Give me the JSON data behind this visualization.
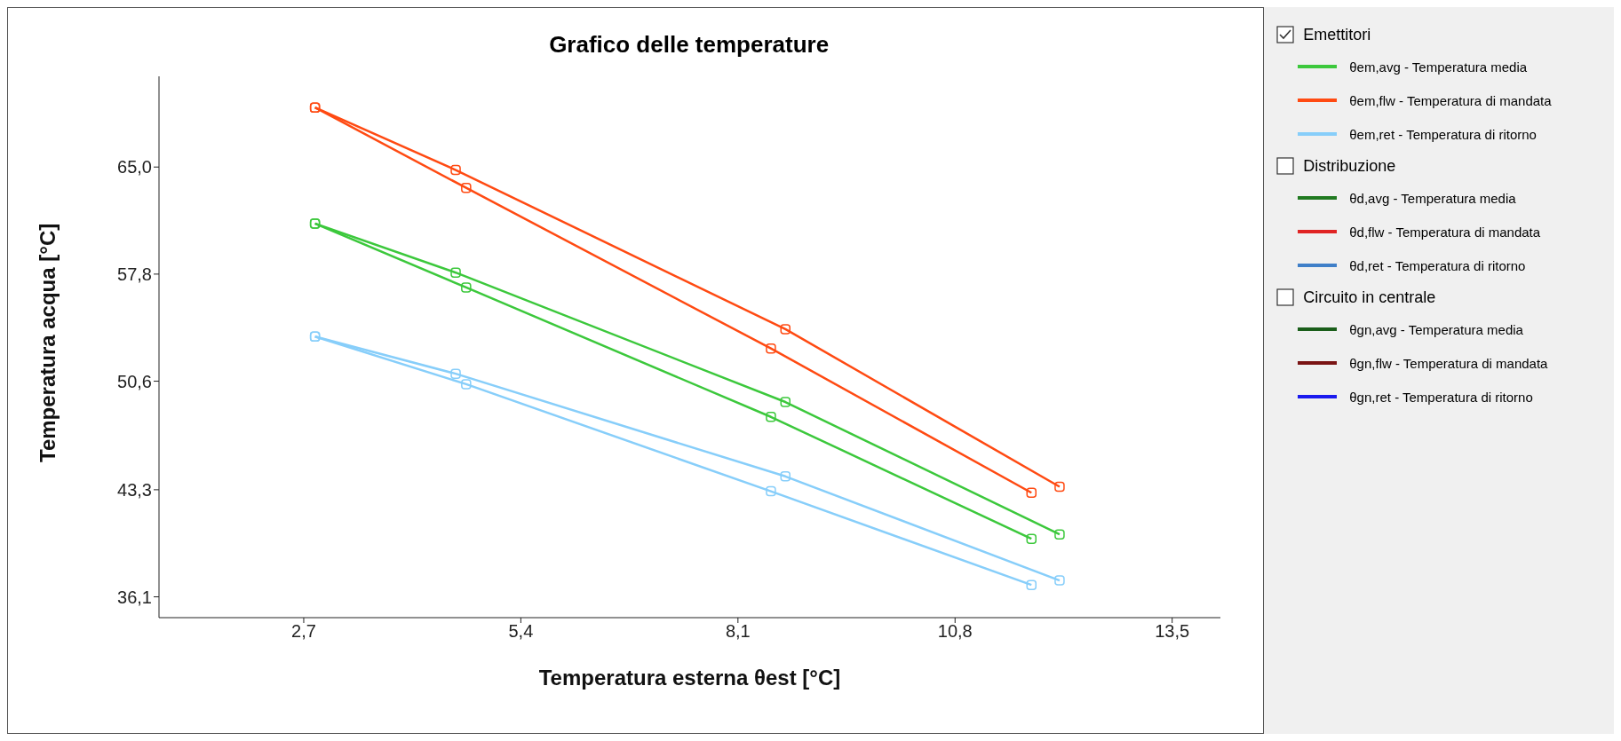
{
  "chart_data": {
    "type": "line",
    "title": "Grafico delle temperature",
    "xlabel": "Temperatura esterna θest [°C]",
    "ylabel": "Temperatura acqua [°C]",
    "xlim": [
      0.9,
      14.1
    ],
    "xticks": [
      {
        "value": 2.7,
        "label": "2,7"
      },
      {
        "value": 5.4,
        "label": "5,4"
      },
      {
        "value": 8.1,
        "label": "8,1"
      },
      {
        "value": 10.8,
        "label": "10,8"
      },
      {
        "value": 13.5,
        "label": "13,5"
      }
    ],
    "ylim": [
      34.7,
      71.1
    ],
    "yticks": [
      {
        "value": 36.1,
        "label": "36,1"
      },
      {
        "value": 43.3,
        "label": "43,3"
      },
      {
        "value": 50.6,
        "label": "50,6"
      },
      {
        "value": 57.8,
        "label": "57,8"
      },
      {
        "value": 65,
        "label": "65,0"
      }
    ],
    "grid": false,
    "marker": "square",
    "line_style": "solid",
    "legend": "right",
    "annotations": [
      "Emettitori",
      "Distribuzione",
      "Circuito in centrale"
    ],
    "series": [
      {
        "name": "θem,avg - Temperatura media",
        "color": "#3cc83c",
        "x": [
          2.84,
          4.59,
          8.69,
          12.1
        ],
        "values": [
          61.2,
          57.9,
          49.2,
          40.3
        ]
      },
      {
        "name": "θem,flw - Temperatura di mandata",
        "color": "#ff4a12",
        "x": [
          2.84,
          4.59,
          8.69,
          12.1
        ],
        "values": [
          69.0,
          64.8,
          54.1,
          43.5
        ]
      },
      {
        "name": "θem,ret - Temperatura di ritorno",
        "color": "#87cefa",
        "x": [
          2.84,
          4.59,
          8.69,
          12.1
        ],
        "values": [
          53.6,
          51.1,
          44.2,
          37.2
        ]
      },
      {
        "name": "θd,avg - Temperatura media",
        "color": "#217a21"
      },
      {
        "name": "θd,flw - Temperatura di mandata",
        "color": "#e02424"
      },
      {
        "name": "θd,ret - Temperatura di ritorno",
        "color": "#3f7fc8"
      },
      {
        "name": "θgn,avg - Temperatura media",
        "color": "#1a5e1a"
      },
      {
        "name": "θgn,flw - Temperatura di mandata",
        "color": "#7a1414"
      },
      {
        "name": "θgn,ret - Temperatura di ritorno",
        "color": "#1a1aee"
      },
      {
        "color": "#3cc83c",
        "x": [
          2.84,
          4.72,
          8.51,
          11.75
        ],
        "values": [
          61.2,
          56.9,
          48.2,
          40.0
        ]
      },
      {
        "color": "#ff4a12",
        "x": [
          2.84,
          4.72,
          8.51,
          11.75
        ],
        "values": [
          69.0,
          63.6,
          52.8,
          43.1
        ]
      },
      {
        "color": "#87cefa",
        "x": [
          2.84,
          4.72,
          8.51,
          11.75
        ],
        "values": [
          53.6,
          50.4,
          43.2,
          36.9
        ]
      }
    ]
  }
}
